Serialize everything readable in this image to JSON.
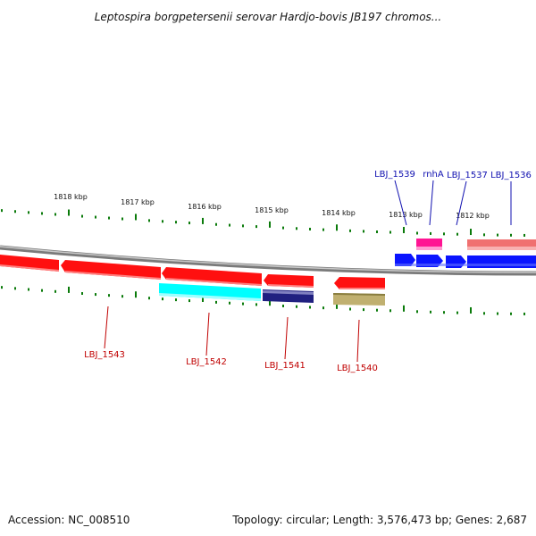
{
  "title": "Leptospira borgpetersenii serovar Hardjo-bovis JB197 chromos...",
  "footer": {
    "accession": "Accession: NC_008510",
    "summary": "Topology: circular; Length: 3,576,473 bp; Genes: 2,687"
  },
  "scale_labels": [
    "1818 kbp",
    "1817 kbp",
    "1816 kbp",
    "1815 kbp",
    "1814 kbp",
    "1813 kbp",
    "1812 kbp"
  ],
  "colors": {
    "red": "#ff1010",
    "cyan": "#00ffff",
    "navy": "#202080",
    "khaki": "#c0b070",
    "blue": "#0a14ff",
    "magenta": "#ff1493",
    "salmon": "#f07070",
    "backbone": "#909090",
    "tick": "#0a7a0a",
    "top_label": "#1010b0",
    "bottom_label": "#c00000"
  },
  "top_genes": [
    {
      "name": "LBJ_1539"
    },
    {
      "name": "rnhA"
    },
    {
      "name": "LBJ_1537"
    },
    {
      "name": "LBJ_1536"
    }
  ],
  "bottom_genes": [
    {
      "name": "LBJ_1543"
    },
    {
      "name": "LBJ_1542"
    },
    {
      "name": "LBJ_1541"
    },
    {
      "name": "LBJ_1540"
    }
  ]
}
